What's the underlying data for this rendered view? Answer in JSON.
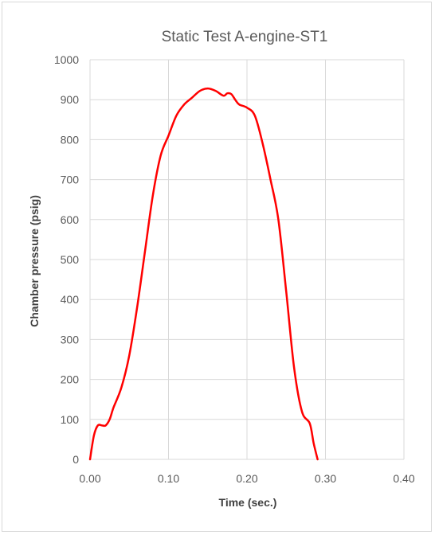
{
  "chart_data": {
    "type": "scatter",
    "title": "Static Test A-engine-ST1",
    "xlabel": "Time  (sec.)",
    "ylabel": "Chamber pressure  (psig)",
    "xlim": [
      0,
      0.4
    ],
    "ylim": [
      0,
      1000
    ],
    "x_ticks": [
      0,
      0.1,
      0.2,
      0.3,
      0.4
    ],
    "x_tick_labels": [
      "0.00",
      "0.10",
      "0.20",
      "0.30",
      "0.40"
    ],
    "y_ticks": [
      0,
      100,
      200,
      300,
      400,
      500,
      600,
      700,
      800,
      900,
      1000
    ],
    "y_tick_labels": [
      "0",
      "100",
      "200",
      "300",
      "400",
      "500",
      "600",
      "700",
      "800",
      "900",
      "1000"
    ],
    "grid": true,
    "legend": "none",
    "series": [
      {
        "color": "#ff0000",
        "points": [
          [
            0.0,
            0
          ],
          [
            0.005,
            60
          ],
          [
            0.01,
            85
          ],
          [
            0.015,
            85
          ],
          [
            0.02,
            85
          ],
          [
            0.025,
            100
          ],
          [
            0.03,
            130
          ],
          [
            0.04,
            180
          ],
          [
            0.05,
            260
          ],
          [
            0.06,
            380
          ],
          [
            0.07,
            520
          ],
          [
            0.08,
            660
          ],
          [
            0.09,
            760
          ],
          [
            0.1,
            810
          ],
          [
            0.11,
            860
          ],
          [
            0.12,
            888
          ],
          [
            0.13,
            905
          ],
          [
            0.14,
            922
          ],
          [
            0.15,
            928
          ],
          [
            0.16,
            922
          ],
          [
            0.17,
            910
          ],
          [
            0.175,
            916
          ],
          [
            0.18,
            914
          ],
          [
            0.185,
            900
          ],
          [
            0.19,
            888
          ],
          [
            0.2,
            880
          ],
          [
            0.21,
            860
          ],
          [
            0.22,
            790
          ],
          [
            0.23,
            700
          ],
          [
            0.24,
            600
          ],
          [
            0.25,
            420
          ],
          [
            0.26,
            230
          ],
          [
            0.27,
            120
          ],
          [
            0.28,
            90
          ],
          [
            0.285,
            40
          ],
          [
            0.29,
            0
          ]
        ]
      }
    ]
  }
}
